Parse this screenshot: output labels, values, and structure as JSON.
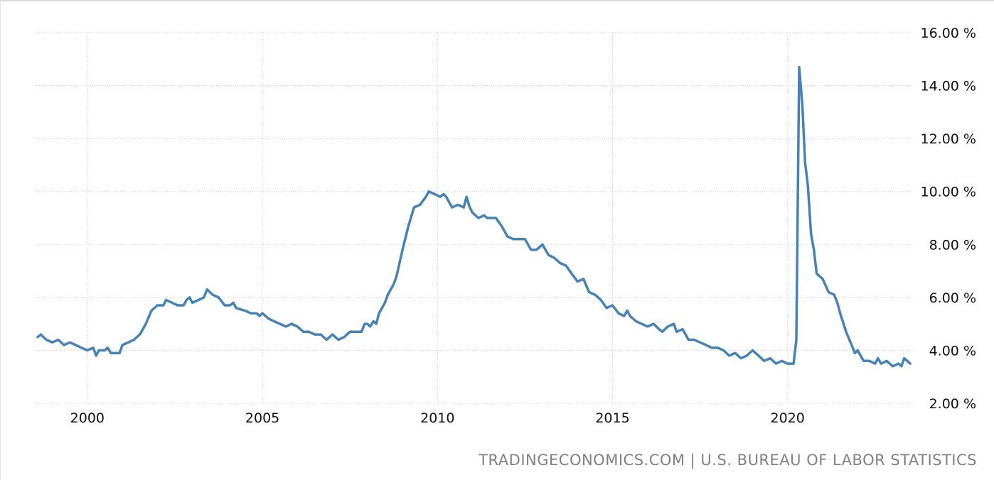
{
  "source": {
    "text": "TRADINGECONOMICS.COM | U.S. BUREAU OF LABOR STATISTICS"
  },
  "colors": {
    "series": "#4682b4",
    "grid": "#c8c8c8",
    "text": "#111111",
    "source_text": "#808080"
  },
  "chart_data": {
    "type": "line",
    "title": "",
    "xlabel": "",
    "ylabel": "",
    "xlim": [
      1998.5,
      2023.6
    ],
    "ylim": [
      2,
      16
    ],
    "grid": true,
    "y_axis_position": "right",
    "x_ticks": [
      2000,
      2005,
      2010,
      2015,
      2020
    ],
    "x_tick_labels": [
      "2000",
      "2005",
      "2010",
      "2015",
      "2020"
    ],
    "y_ticks": [
      2,
      4,
      6,
      8,
      10,
      12,
      14,
      16
    ],
    "y_tick_labels": [
      "2.00 %",
      "4.00 %",
      "6.00 %",
      "8.00 %",
      "10.00 %",
      "12.00 %",
      "14.00 %",
      "16.00 %"
    ],
    "series": [
      {
        "name": "",
        "points": [
          [
            1998.58,
            4.5
          ],
          [
            1998.67,
            4.6
          ],
          [
            1998.83,
            4.4
          ],
          [
            1999.0,
            4.3
          ],
          [
            1999.17,
            4.4
          ],
          [
            1999.33,
            4.2
          ],
          [
            1999.5,
            4.3
          ],
          [
            1999.67,
            4.2
          ],
          [
            1999.83,
            4.1
          ],
          [
            2000.0,
            4.0
          ],
          [
            2000.17,
            4.1
          ],
          [
            2000.25,
            3.8
          ],
          [
            2000.33,
            4.0
          ],
          [
            2000.5,
            4.0
          ],
          [
            2000.58,
            4.1
          ],
          [
            2000.67,
            3.9
          ],
          [
            2000.92,
            3.9
          ],
          [
            2001.0,
            4.2
          ],
          [
            2001.17,
            4.3
          ],
          [
            2001.33,
            4.4
          ],
          [
            2001.5,
            4.6
          ],
          [
            2001.67,
            5.0
          ],
          [
            2001.83,
            5.5
          ],
          [
            2002.0,
            5.7
          ],
          [
            2002.17,
            5.7
          ],
          [
            2002.25,
            5.9
          ],
          [
            2002.42,
            5.8
          ],
          [
            2002.58,
            5.7
          ],
          [
            2002.75,
            5.7
          ],
          [
            2002.83,
            5.9
          ],
          [
            2002.92,
            6.0
          ],
          [
            2003.0,
            5.8
          ],
          [
            2003.17,
            5.9
          ],
          [
            2003.33,
            6.0
          ],
          [
            2003.42,
            6.3
          ],
          [
            2003.58,
            6.1
          ],
          [
            2003.75,
            6.0
          ],
          [
            2003.92,
            5.7
          ],
          [
            2004.08,
            5.7
          ],
          [
            2004.17,
            5.8
          ],
          [
            2004.25,
            5.6
          ],
          [
            2004.5,
            5.5
          ],
          [
            2004.67,
            5.4
          ],
          [
            2004.83,
            5.4
          ],
          [
            2004.92,
            5.3
          ],
          [
            2005.0,
            5.4
          ],
          [
            2005.17,
            5.2
          ],
          [
            2005.33,
            5.1
          ],
          [
            2005.5,
            5.0
          ],
          [
            2005.67,
            4.9
          ],
          [
            2005.83,
            5.0
          ],
          [
            2006.0,
            4.9
          ],
          [
            2006.17,
            4.7
          ],
          [
            2006.33,
            4.7
          ],
          [
            2006.5,
            4.6
          ],
          [
            2006.67,
            4.6
          ],
          [
            2006.83,
            4.4
          ],
          [
            2007.0,
            4.6
          ],
          [
            2007.17,
            4.4
          ],
          [
            2007.33,
            4.5
          ],
          [
            2007.5,
            4.7
          ],
          [
            2007.67,
            4.7
          ],
          [
            2007.83,
            4.7
          ],
          [
            2007.92,
            5.0
          ],
          [
            2008.0,
            5.0
          ],
          [
            2008.08,
            4.9
          ],
          [
            2008.17,
            5.1
          ],
          [
            2008.25,
            5.0
          ],
          [
            2008.33,
            5.4
          ],
          [
            2008.5,
            5.8
          ],
          [
            2008.58,
            6.1
          ],
          [
            2008.75,
            6.5
          ],
          [
            2008.83,
            6.8
          ],
          [
            2009.0,
            7.8
          ],
          [
            2009.17,
            8.7
          ],
          [
            2009.33,
            9.4
          ],
          [
            2009.5,
            9.5
          ],
          [
            2009.67,
            9.8
          ],
          [
            2009.75,
            10.0
          ],
          [
            2009.92,
            9.9
          ],
          [
            2010.08,
            9.8
          ],
          [
            2010.17,
            9.9
          ],
          [
            2010.25,
            9.8
          ],
          [
            2010.33,
            9.6
          ],
          [
            2010.42,
            9.4
          ],
          [
            2010.58,
            9.5
          ],
          [
            2010.75,
            9.4
          ],
          [
            2010.83,
            9.8
          ],
          [
            2010.92,
            9.4
          ],
          [
            2011.0,
            9.2
          ],
          [
            2011.17,
            9.0
          ],
          [
            2011.33,
            9.1
          ],
          [
            2011.42,
            9.0
          ],
          [
            2011.58,
            9.0
          ],
          [
            2011.67,
            9.0
          ],
          [
            2011.83,
            8.7
          ],
          [
            2012.0,
            8.3
          ],
          [
            2012.17,
            8.2
          ],
          [
            2012.5,
            8.2
          ],
          [
            2012.67,
            7.8
          ],
          [
            2012.83,
            7.8
          ],
          [
            2013.0,
            8.0
          ],
          [
            2013.17,
            7.6
          ],
          [
            2013.33,
            7.5
          ],
          [
            2013.5,
            7.3
          ],
          [
            2013.67,
            7.2
          ],
          [
            2013.83,
            6.9
          ],
          [
            2014.0,
            6.6
          ],
          [
            2014.17,
            6.7
          ],
          [
            2014.33,
            6.2
          ],
          [
            2014.5,
            6.1
          ],
          [
            2014.67,
            5.9
          ],
          [
            2014.83,
            5.6
          ],
          [
            2015.0,
            5.7
          ],
          [
            2015.17,
            5.4
          ],
          [
            2015.33,
            5.3
          ],
          [
            2015.42,
            5.5
          ],
          [
            2015.5,
            5.3
          ],
          [
            2015.67,
            5.1
          ],
          [
            2015.83,
            5.0
          ],
          [
            2016.0,
            4.9
          ],
          [
            2016.17,
            5.0
          ],
          [
            2016.33,
            4.8
          ],
          [
            2016.42,
            4.7
          ],
          [
            2016.58,
            4.9
          ],
          [
            2016.75,
            5.0
          ],
          [
            2016.83,
            4.7
          ],
          [
            2017.0,
            4.8
          ],
          [
            2017.17,
            4.4
          ],
          [
            2017.33,
            4.4
          ],
          [
            2017.5,
            4.3
          ],
          [
            2017.67,
            4.2
          ],
          [
            2017.83,
            4.1
          ],
          [
            2018.0,
            4.1
          ],
          [
            2018.17,
            4.0
          ],
          [
            2018.33,
            3.8
          ],
          [
            2018.5,
            3.9
          ],
          [
            2018.67,
            3.7
          ],
          [
            2018.83,
            3.8
          ],
          [
            2019.0,
            4.0
          ],
          [
            2019.17,
            3.8
          ],
          [
            2019.33,
            3.6
          ],
          [
            2019.5,
            3.7
          ],
          [
            2019.67,
            3.5
          ],
          [
            2019.83,
            3.6
          ],
          [
            2020.0,
            3.5
          ],
          [
            2020.08,
            3.5
          ],
          [
            2020.17,
            3.5
          ],
          [
            2020.25,
            4.4
          ],
          [
            2020.33,
            14.7
          ],
          [
            2020.42,
            13.3
          ],
          [
            2020.5,
            11.1
          ],
          [
            2020.58,
            10.2
          ],
          [
            2020.67,
            8.4
          ],
          [
            2020.75,
            7.8
          ],
          [
            2020.83,
            6.9
          ],
          [
            2021.0,
            6.7
          ],
          [
            2021.17,
            6.2
          ],
          [
            2021.33,
            6.1
          ],
          [
            2021.42,
            5.8
          ],
          [
            2021.5,
            5.4
          ],
          [
            2021.67,
            4.7
          ],
          [
            2021.83,
            4.2
          ],
          [
            2021.92,
            3.9
          ],
          [
            2022.0,
            4.0
          ],
          [
            2022.17,
            3.6
          ],
          [
            2022.33,
            3.6
          ],
          [
            2022.5,
            3.5
          ],
          [
            2022.58,
            3.7
          ],
          [
            2022.67,
            3.5
          ],
          [
            2022.83,
            3.6
          ],
          [
            2023.0,
            3.4
          ],
          [
            2023.17,
            3.5
          ],
          [
            2023.25,
            3.4
          ],
          [
            2023.33,
            3.7
          ],
          [
            2023.42,
            3.6
          ],
          [
            2023.5,
            3.5
          ]
        ]
      }
    ]
  }
}
